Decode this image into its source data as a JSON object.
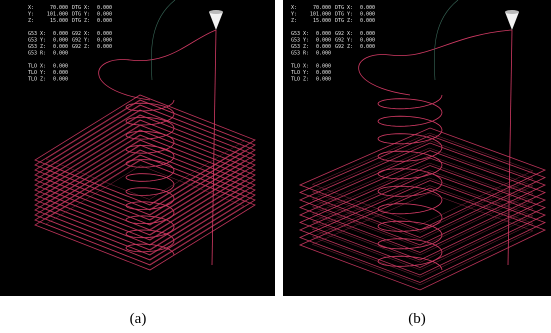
{
  "panels": [
    {
      "dro_groups": [
        [
          [
            {
              "label": "X:",
              "value": "70.000"
            },
            {
              "label": "DTG X:",
              "value": "0.000"
            }
          ],
          [
            {
              "label": "Y:",
              "value": "101.000"
            },
            {
              "label": "DTG Y:",
              "value": "0.000"
            }
          ],
          [
            {
              "label": "Z:",
              "value": "15.000"
            },
            {
              "label": "DTG Z:",
              "value": "0.000"
            }
          ]
        ],
        [
          [
            {
              "label": "G53 X:",
              "value": "0.000"
            },
            {
              "label": "G92 X:",
              "value": "0.000"
            }
          ],
          [
            {
              "label": "G53 Y:",
              "value": "0.000"
            },
            {
              "label": "G92 Y:",
              "value": "0.000"
            }
          ],
          [
            {
              "label": "G53 Z:",
              "value": "0.000"
            },
            {
              "label": "G92 Z:",
              "value": "0.000"
            }
          ],
          [
            {
              "label": "G53 R:",
              "value": "0.000"
            }
          ]
        ],
        [
          [
            {
              "label": "TLO X:",
              "value": "0.000"
            }
          ],
          [
            {
              "label": "TLO Y:",
              "value": "0.000"
            }
          ],
          [
            {
              "label": "TLO Z:",
              "value": "0.000"
            }
          ]
        ]
      ],
      "caption": "(a)"
    },
    {
      "dro_groups": [
        [
          [
            {
              "label": "X:",
              "value": "70.000"
            },
            {
              "label": "DTG X:",
              "value": "0.000"
            }
          ],
          [
            {
              "label": "Y:",
              "value": "101.000"
            },
            {
              "label": "DTG Y:",
              "value": "0.000"
            }
          ],
          [
            {
              "label": "Z:",
              "value": "15.000"
            },
            {
              "label": "DTG Z:",
              "value": "0.000"
            }
          ]
        ],
        [
          [
            {
              "label": "G53 X:",
              "value": "0.000"
            },
            {
              "label": "G92 X:",
              "value": "0.000"
            }
          ],
          [
            {
              "label": "G53 Y:",
              "value": "0.000"
            },
            {
              "label": "G92 Y:",
              "value": "0.000"
            }
          ],
          [
            {
              "label": "G53 Z:",
              "value": "0.000"
            },
            {
              "label": "G92 Z:",
              "value": "0.000"
            }
          ],
          [
            {
              "label": "G53 R:",
              "value": "0.000"
            }
          ]
        ],
        [
          [
            {
              "label": "TLO X:",
              "value": "0.000"
            }
          ],
          [
            {
              "label": "TLO Y:",
              "value": "0.000"
            }
          ],
          [
            {
              "label": "TLO Z:",
              "value": "0.000"
            }
          ]
        ]
      ],
      "caption": "(b)"
    }
  ]
}
